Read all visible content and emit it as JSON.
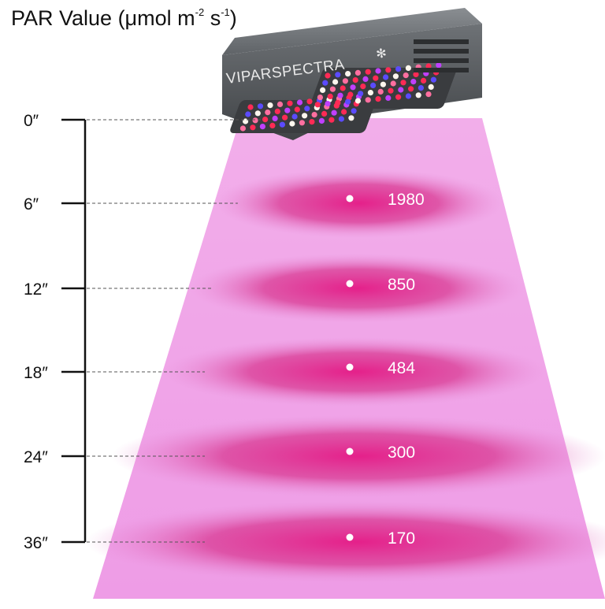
{
  "title": {
    "prefix": "PAR Value (μmol m",
    "exp1": "-2",
    "mid": " s",
    "exp2": "-1",
    "suffix": ")"
  },
  "brand": "VIPARSPECTRA",
  "colors": {
    "beam": "#f4b0ef",
    "spot": "#e5208a",
    "led_red": "#ff2a55",
    "led_blue": "#5b4bff",
    "led_white": "#fff7ee",
    "housing": "#54585c",
    "axis": "#111111"
  },
  "chart_data": {
    "type": "scatter",
    "title": "PAR Value (μmol m-2 s-1)",
    "ylim": [
      0,
      36
    ],
    "y_inverted": true,
    "ticks": [
      {
        "label": "0″",
        "value": 0
      },
      {
        "label": "6″",
        "value": 6
      },
      {
        "label": "12″",
        "value": 12
      },
      {
        "label": "18″",
        "value": 18
      },
      {
        "label": "24″",
        "value": 24
      },
      {
        "label": "36″",
        "value": 36
      }
    ],
    "points": [
      {
        "distance": 6,
        "par": 1980,
        "label": "1980"
      },
      {
        "distance": 12,
        "par": 850,
        "label": "850"
      },
      {
        "distance": 18,
        "par": 484,
        "label": "484"
      },
      {
        "distance": 24,
        "par": 300,
        "label": "300"
      },
      {
        "distance": 36,
        "par": 170,
        "label": "170"
      }
    ]
  }
}
